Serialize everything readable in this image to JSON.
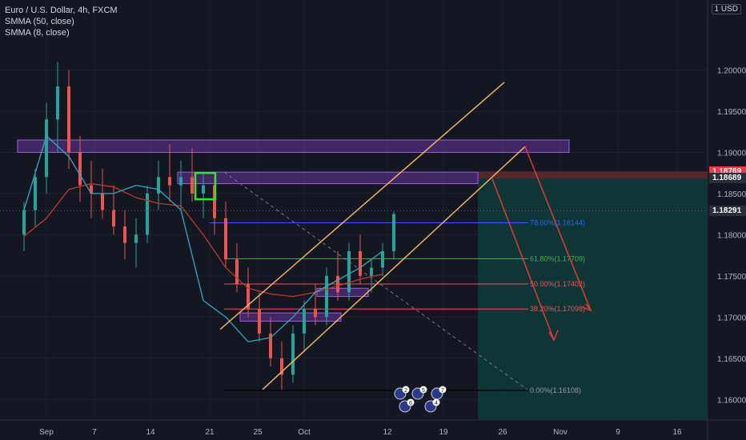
{
  "header": {
    "symbol_line": "Euro / U.S. Dollar, 4h, FXCM",
    "indicator_1": "SMMA (50, close)",
    "indicator_2": "SMMA (8, close)",
    "currency": "1 USD"
  },
  "price_badges": [
    {
      "label": "1.18769",
      "color": "#f23645"
    },
    {
      "label": "1.18689",
      "color": "#2a2e39"
    },
    {
      "label": "1.18291",
      "color": "#2a2e39"
    }
  ],
  "colors": {
    "background": "#131722",
    "up_candle": "#26a69a",
    "down_candle": "#ef5350",
    "smma50": "#c0392b",
    "smma8": "#2fa8c4",
    "channel": "#f0b25a",
    "zone": "#7b3fb8",
    "projection": "#e53935",
    "target_zone": "#0f3a3a"
  },
  "chart_data": {
    "type": "candlestick",
    "y_axis": {
      "ylim": [
        1.1575,
        1.2085
      ],
      "ticks": [
        "1.16000",
        "1.16500",
        "1.17000",
        "1.17500",
        "1.18000",
        "1.18500",
        "1.19000",
        "1.19500",
        "1.20000"
      ]
    },
    "x_axis": {
      "ticks": [
        "Sep",
        "7",
        "14",
        "21",
        "25",
        "Oct",
        "12",
        "19",
        "26",
        "Nov",
        "9",
        "16"
      ]
    },
    "fib_levels": [
      {
        "label": "78.60%(1.18144)",
        "value": 1.18144,
        "color": "#2962ff"
      },
      {
        "label": "61.80%(1.17709)",
        "value": 1.17709,
        "color": "#4caf50"
      },
      {
        "label": "50.00%(1.17402)",
        "value": 1.17402,
        "color": "#ef5350"
      },
      {
        "label": "38.20%(1.17098)",
        "value": 1.17098,
        "color": "#ef5350"
      },
      {
        "label": "0.00%(1.16108)",
        "value": 1.16108,
        "color": "#9598a1"
      }
    ],
    "series": [
      {
        "name": "SMMA (50, close)",
        "values": [
          1.1798,
          1.182,
          1.1855,
          1.1862,
          1.1858,
          1.1845,
          1.1838,
          1.1835,
          1.18,
          1.176,
          1.1735,
          1.1728,
          1.1725,
          1.173,
          1.1738,
          1.1746,
          1.1752
        ]
      },
      {
        "name": "SMMA (8, close)",
        "values": [
          1.183,
          1.192,
          1.1895,
          1.185,
          1.185,
          1.186,
          1.1855,
          1.183,
          1.172,
          1.17,
          1.167,
          1.1675,
          1.17,
          1.173,
          1.1745,
          1.176,
          1.178
        ]
      }
    ],
    "candles": [
      [
        1.18,
        1.184,
        1.178,
        1.183
      ],
      [
        1.183,
        1.188,
        1.181,
        1.187
      ],
      [
        1.187,
        1.196,
        1.185,
        1.194
      ],
      [
        1.194,
        1.201,
        1.19,
        1.198
      ],
      [
        1.198,
        1.2,
        1.188,
        1.19
      ],
      [
        1.19,
        1.192,
        1.184,
        1.186
      ],
      [
        1.186,
        1.189,
        1.182,
        1.185
      ],
      [
        1.185,
        1.188,
        1.182,
        1.183
      ],
      [
        1.183,
        1.186,
        1.18,
        1.181
      ],
      [
        1.181,
        1.183,
        1.177,
        1.179
      ],
      [
        1.179,
        1.182,
        1.176,
        1.18
      ],
      [
        1.18,
        1.186,
        1.179,
        1.185
      ],
      [
        1.185,
        1.189,
        1.183,
        1.187
      ],
      [
        1.187,
        1.191,
        1.184,
        1.186
      ],
      [
        1.186,
        1.189,
        1.183,
        1.187
      ],
      [
        1.187,
        1.1905,
        1.184,
        1.185
      ],
      [
        1.185,
        1.1875,
        1.182,
        1.186
      ],
      [
        1.186,
        1.187,
        1.18,
        1.182
      ],
      [
        1.182,
        1.184,
        1.176,
        1.177
      ],
      [
        1.177,
        1.179,
        1.173,
        1.174
      ],
      [
        1.174,
        1.176,
        1.17,
        1.171
      ],
      [
        1.171,
        1.173,
        1.167,
        1.168
      ],
      [
        1.168,
        1.17,
        1.164,
        1.165
      ],
      [
        1.165,
        1.167,
        1.1611,
        1.163
      ],
      [
        1.163,
        1.169,
        1.162,
        1.168
      ],
      [
        1.168,
        1.172,
        1.166,
        1.171
      ],
      [
        1.171,
        1.174,
        1.169,
        1.17
      ],
      [
        1.17,
        1.176,
        1.169,
        1.175
      ],
      [
        1.175,
        1.178,
        1.172,
        1.173
      ],
      [
        1.173,
        1.179,
        1.172,
        1.178
      ],
      [
        1.178,
        1.18,
        1.174,
        1.175
      ],
      [
        1.175,
        1.177,
        1.173,
        1.176
      ],
      [
        1.176,
        1.179,
        1.175,
        1.178
      ],
      [
        1.178,
        1.1828,
        1.177,
        1.1825
      ]
    ]
  },
  "footer_badges": [
    {
      "count": "2"
    },
    {
      "count": "5"
    },
    {
      "count": "7"
    },
    {
      "count": "6"
    },
    {
      "count": "4"
    }
  ]
}
